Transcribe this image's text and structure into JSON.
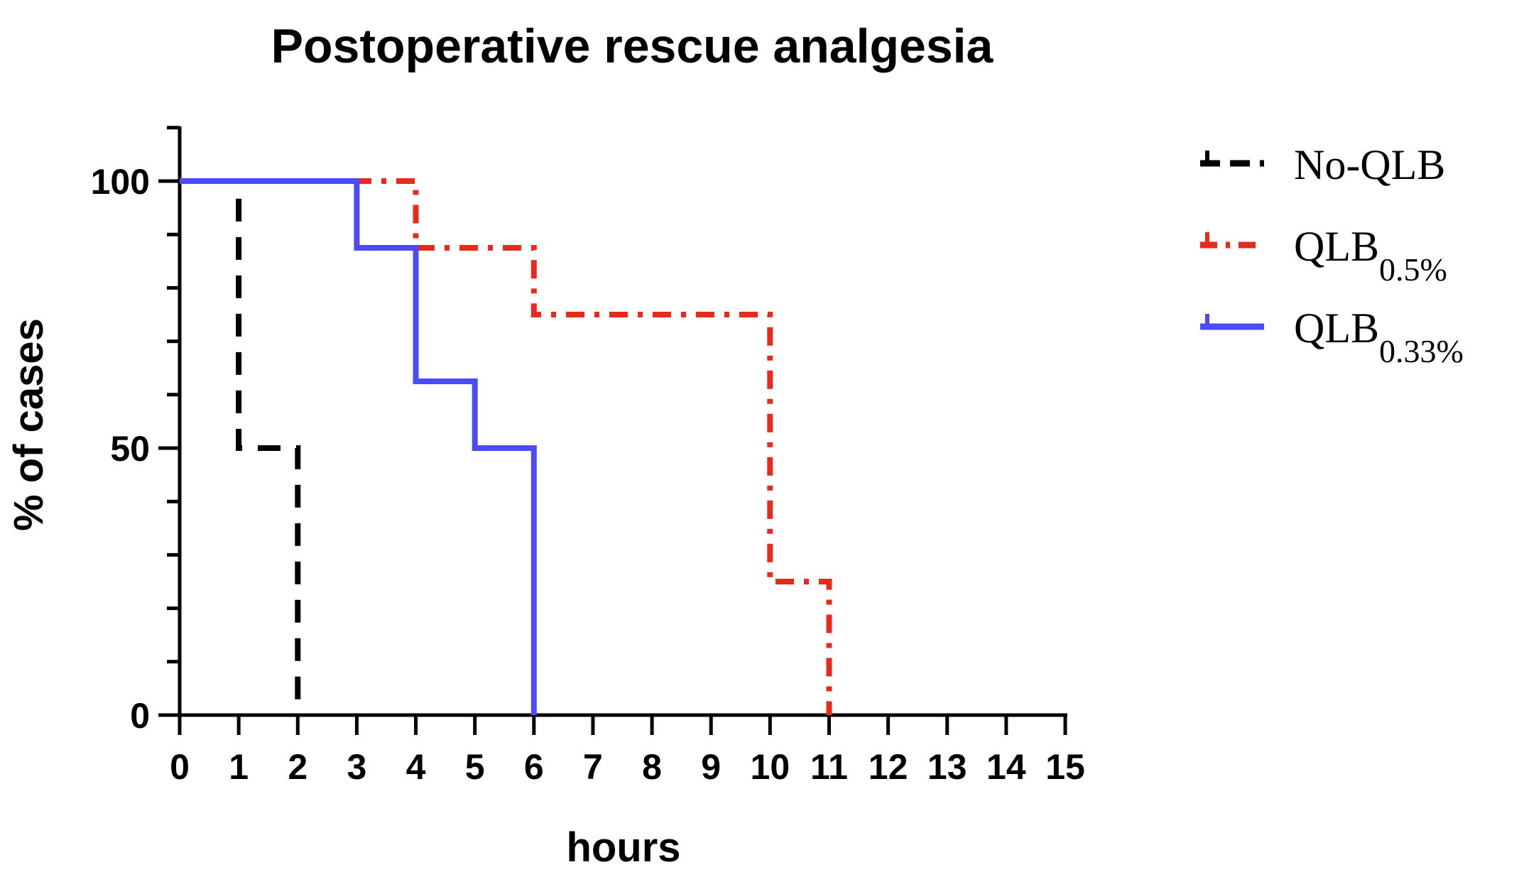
{
  "chart_data": {
    "type": "line",
    "subtype": "step",
    "title": "Postoperative rescue analgesia",
    "xlabel": "hours",
    "ylabel": "% of cases",
    "xlim": [
      0,
      15
    ],
    "ylim": [
      0,
      110
    ],
    "x_ticks": [
      0,
      1,
      2,
      3,
      4,
      5,
      6,
      7,
      8,
      9,
      10,
      11,
      12,
      13,
      14,
      15
    ],
    "y_major_ticks": [
      0,
      50,
      100
    ],
    "y_minor_step": 10,
    "grid": false,
    "legend_position": "right",
    "series": [
      {
        "name": "No-QLB",
        "label_main": "No-QLB",
        "label_sub": "",
        "color": "#000000",
        "line_style": "dashed",
        "points": [
          [
            0,
            100
          ],
          [
            1,
            100
          ],
          [
            1,
            50
          ],
          [
            2,
            50
          ],
          [
            2,
            0
          ]
        ]
      },
      {
        "name": "QLB0.5%",
        "label_main": "QLB",
        "label_sub": "0.5%",
        "color": "#e8291c",
        "line_style": "dash-dot",
        "points": [
          [
            0,
            100
          ],
          [
            4,
            100
          ],
          [
            4,
            87.5
          ],
          [
            6,
            87.5
          ],
          [
            6,
            75
          ],
          [
            10,
            75
          ],
          [
            10,
            25
          ],
          [
            11,
            25
          ],
          [
            11,
            0
          ]
        ]
      },
      {
        "name": "QLB0.33%",
        "label_main": "QLB",
        "label_sub": "0.33%",
        "color": "#4b4cf5",
        "line_style": "solid",
        "points": [
          [
            0,
            100
          ],
          [
            3,
            100
          ],
          [
            3,
            87.5
          ],
          [
            4,
            87.5
          ],
          [
            4,
            62.5
          ],
          [
            5,
            62.5
          ],
          [
            5,
            50
          ],
          [
            6,
            50
          ],
          [
            6,
            0
          ]
        ]
      }
    ]
  }
}
